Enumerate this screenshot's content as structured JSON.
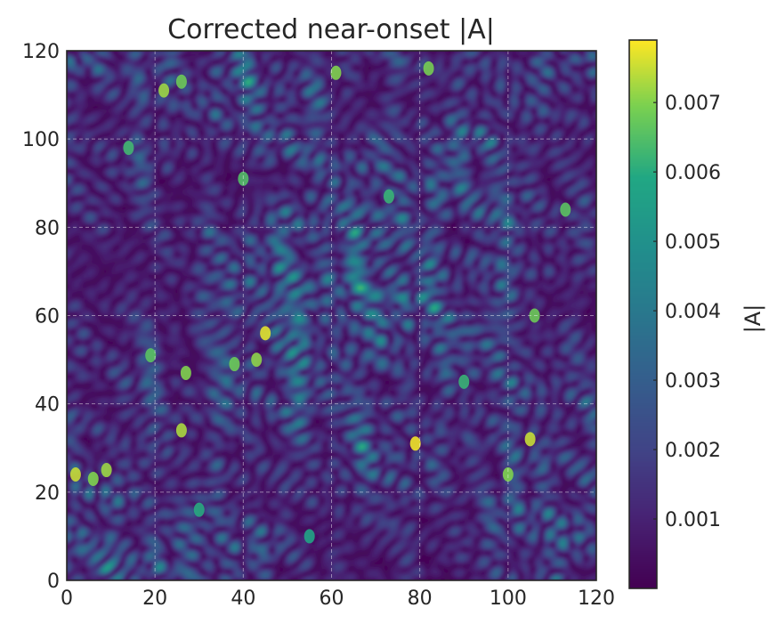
{
  "chart_data": {
    "type": "heatmap",
    "title": "Corrected near-onset |A|",
    "xlabel": "",
    "ylabel": "",
    "xlim": [
      0,
      120
    ],
    "ylim": [
      0,
      120
    ],
    "x_ticks": [
      {
        "value": 0,
        "label": "0"
      },
      {
        "value": 20,
        "label": "20"
      },
      {
        "value": 40,
        "label": "40"
      },
      {
        "value": 60,
        "label": "60"
      },
      {
        "value": 80,
        "label": "80"
      },
      {
        "value": 100,
        "label": "100"
      },
      {
        "value": 120,
        "label": "120"
      }
    ],
    "y_ticks": [
      {
        "value": 0,
        "label": "0"
      },
      {
        "value": 20,
        "label": "20"
      },
      {
        "value": 40,
        "label": "40"
      },
      {
        "value": 60,
        "label": "60"
      },
      {
        "value": 80,
        "label": "80"
      },
      {
        "value": 100,
        "label": "100"
      },
      {
        "value": 120,
        "label": "120"
      }
    ],
    "grid": true,
    "colormap": "viridis",
    "colorbar": {
      "label": "|A|",
      "vmin": 0.0,
      "vmax": 0.0079,
      "ticks": [
        {
          "value": 0.001,
          "label": "0.001"
        },
        {
          "value": 0.002,
          "label": "0.002"
        },
        {
          "value": 0.003,
          "label": "0.003"
        },
        {
          "value": 0.004,
          "label": "0.004"
        },
        {
          "value": 0.005,
          "label": "0.005"
        },
        {
          "value": 0.006,
          "label": "0.006"
        },
        {
          "value": 0.007,
          "label": "0.007"
        }
      ]
    },
    "bright_spots": [
      {
        "x": 2,
        "y": 24,
        "value": 0.0075
      },
      {
        "x": 9,
        "y": 25,
        "value": 0.0072
      },
      {
        "x": 6,
        "y": 23,
        "value": 0.007
      },
      {
        "x": 26,
        "y": 34,
        "value": 0.0073
      },
      {
        "x": 22,
        "y": 111,
        "value": 0.0072
      },
      {
        "x": 26,
        "y": 113,
        "value": 0.0068
      },
      {
        "x": 61,
        "y": 115,
        "value": 0.007
      },
      {
        "x": 82,
        "y": 116,
        "value": 0.0069
      },
      {
        "x": 45,
        "y": 56,
        "value": 0.0077
      },
      {
        "x": 43,
        "y": 50,
        "value": 0.0071
      },
      {
        "x": 38,
        "y": 49,
        "value": 0.0068
      },
      {
        "x": 27,
        "y": 47,
        "value": 0.007
      },
      {
        "x": 19,
        "y": 51,
        "value": 0.0066
      },
      {
        "x": 79,
        "y": 31,
        "value": 0.0078
      },
      {
        "x": 105,
        "y": 32,
        "value": 0.0075
      },
      {
        "x": 100,
        "y": 24,
        "value": 0.007
      },
      {
        "x": 106,
        "y": 60,
        "value": 0.0068
      },
      {
        "x": 113,
        "y": 84,
        "value": 0.0066
      },
      {
        "x": 40,
        "y": 91,
        "value": 0.0065
      },
      {
        "x": 14,
        "y": 98,
        "value": 0.0063
      },
      {
        "x": 73,
        "y": 87,
        "value": 0.0062
      },
      {
        "x": 30,
        "y": 16,
        "value": 0.006
      },
      {
        "x": 55,
        "y": 10,
        "value": 0.0058
      },
      {
        "x": 90,
        "y": 45,
        "value": 0.0062
      }
    ]
  }
}
